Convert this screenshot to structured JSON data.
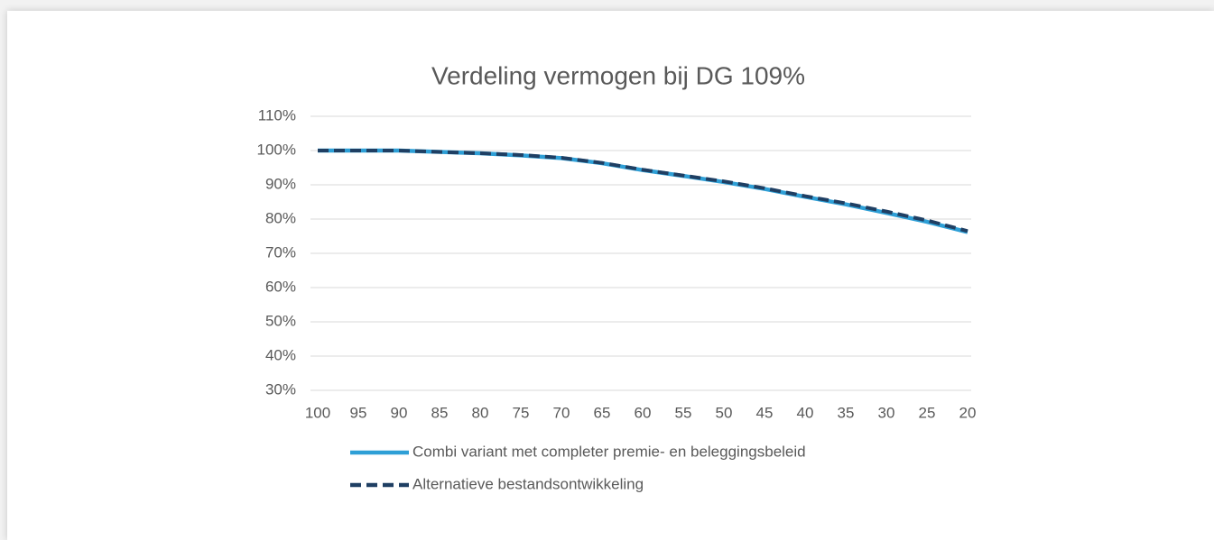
{
  "chart_data": {
    "type": "line",
    "title": "Verdeling vermogen bij DG 109%",
    "x": [
      100,
      95,
      90,
      85,
      80,
      75,
      70,
      65,
      60,
      55,
      50,
      45,
      40,
      35,
      30,
      25,
      20
    ],
    "series": [
      {
        "name": "Combi variant met completer premie- en beleggingsbeleid",
        "color": "#2e9fd6",
        "style": "solid",
        "values": [
          100,
          100,
          100,
          99.6,
          99.2,
          98.6,
          97.8,
          96.3,
          94.3,
          92.6,
          90.8,
          88.8,
          86.5,
          84.3,
          81.8,
          79.2,
          76.2
        ]
      },
      {
        "name": "Alternatieve bestandsontwikkeling",
        "color": "#1f3f63",
        "style": "dashed",
        "values": [
          100,
          100,
          100,
          99.6,
          99.2,
          98.7,
          97.9,
          96.4,
          94.4,
          92.7,
          91.0,
          89.0,
          86.7,
          84.6,
          82.2,
          79.6,
          76.5
        ]
      }
    ],
    "xlim": [
      100,
      20
    ],
    "xticks": [
      100,
      95,
      90,
      85,
      80,
      75,
      70,
      65,
      60,
      55,
      50,
      45,
      40,
      35,
      30,
      25,
      20
    ],
    "ylim": [
      30,
      110
    ],
    "yticks": [
      {
        "value": 30,
        "label": "30%"
      },
      {
        "value": 40,
        "label": "40%"
      },
      {
        "value": 50,
        "label": "50%"
      },
      {
        "value": 60,
        "label": "60%"
      },
      {
        "value": 70,
        "label": "70%"
      },
      {
        "value": 80,
        "label": "80%"
      },
      {
        "value": 90,
        "label": "90%"
      },
      {
        "value": 100,
        "label": "100%"
      },
      {
        "value": 110,
        "label": "110%"
      }
    ],
    "grid": true,
    "legend": "bottom"
  }
}
